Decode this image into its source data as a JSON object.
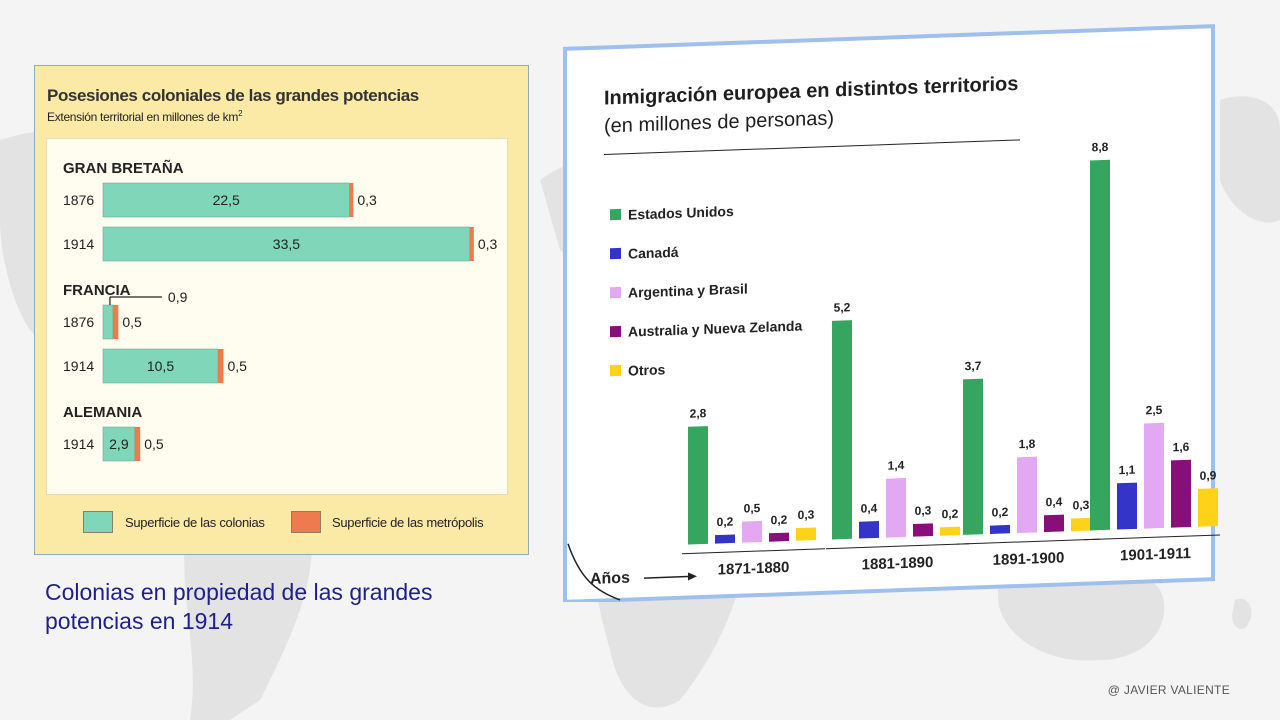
{
  "left": {
    "title": "Posesiones coloniales de las grandes potencias",
    "subtitle": "Extensión territorial en millones de km",
    "subtitle_sup": "2",
    "caption": "Colonias en propiedad de las grandes potencias en 1914",
    "colors": {
      "colonias": "#7fd6b8",
      "metropolis": "#f07a4f"
    },
    "legend": [
      "Superficie de las colonias",
      "Superficie de las metrópolis"
    ],
    "chart_data": {
      "type": "bar",
      "orientation": "horizontal",
      "title": "Posesiones coloniales de las grandes potencias",
      "subtitle": "Extensión territorial en millones de km2",
      "series": [
        {
          "name": "Superficie de las colonias"
        },
        {
          "name": "Superficie de las metrópolis"
        }
      ],
      "groups": [
        {
          "country": "GRAN BRETAÑA",
          "rows": [
            {
              "year": "1876",
              "colonias": 22.5,
              "metropolis": 0.3,
              "colonias_label": "22,5",
              "metropolis_label": "0,3"
            },
            {
              "year": "1914",
              "colonias": 33.5,
              "metropolis": 0.3,
              "colonias_label": "33,5",
              "metropolis_label": "0,3"
            }
          ]
        },
        {
          "country": "FRANCIA",
          "rows": [
            {
              "year": "1876",
              "colonias": 0.9,
              "metropolis": 0.5,
              "colonias_label": "0,9",
              "metropolis_label": "0,5",
              "colonias_label_outside": true
            },
            {
              "year": "1914",
              "colonias": 10.5,
              "metropolis": 0.5,
              "colonias_label": "10,5",
              "metropolis_label": "0,5"
            }
          ]
        },
        {
          "country": "ALEMANIA",
          "rows": [
            {
              "year": "1914",
              "colonias": 2.9,
              "metropolis": 0.5,
              "colonias_label": "2,9",
              "metropolis_label": "0,5"
            }
          ]
        }
      ]
    }
  },
  "right": {
    "title": "Inmigración europea en distintos territorios",
    "subtitle": "(en millones de personas)",
    "axis_label": "Años",
    "chart_data": {
      "type": "bar",
      "title": "Inmigración europea en distintos territorios",
      "subtitle": "(en millones de personas)",
      "xlabel": "Años",
      "ylim": [
        0,
        8.8
      ],
      "legend_position": "left",
      "categories": [
        "1871-1880",
        "1881-1890",
        "1891-1900",
        "1901-1911"
      ],
      "series": [
        {
          "name": "Estados Unidos",
          "color": "#36a55f",
          "values": [
            2.8,
            5.2,
            3.7,
            8.8
          ],
          "labels": [
            "2,8",
            "5,2",
            "3,7",
            "8,8"
          ]
        },
        {
          "name": "Canadá",
          "color": "#3434c8",
          "values": [
            0.2,
            0.4,
            0.2,
            1.1
          ],
          "labels": [
            "0,2",
            "0,4",
            "0,2",
            "1,1"
          ]
        },
        {
          "name": "Argentina y Brasil",
          "color": "#e2a8f2",
          "values": [
            0.5,
            1.4,
            1.8,
            2.5
          ],
          "labels": [
            "0,5",
            "1,4",
            "1,8",
            "2,5"
          ]
        },
        {
          "name": "Australia y Nueva Zelanda",
          "color": "#880e7a",
          "values": [
            0.2,
            0.3,
            0.4,
            1.6
          ],
          "labels": [
            "0,2",
            "0,3",
            "0,4",
            "1,6"
          ]
        },
        {
          "name": "Otros",
          "color": "#ffd21a",
          "values": [
            0.3,
            0.2,
            0.3,
            0.9
          ],
          "labels": [
            "0,3",
            "0,2",
            "0,3",
            "0,9"
          ]
        }
      ]
    }
  },
  "credit": "@ JAVIER VALIENTE"
}
